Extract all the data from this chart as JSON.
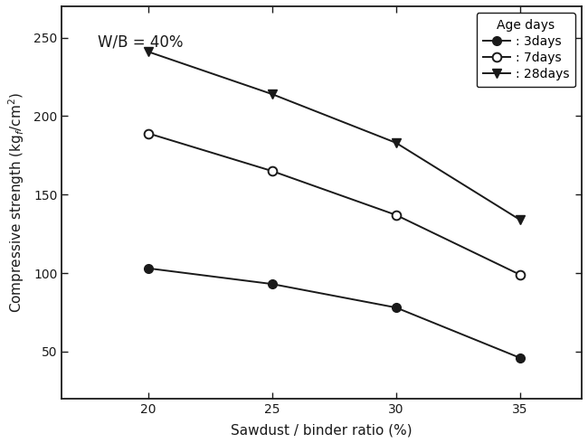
{
  "x": [
    20,
    25,
    30,
    35
  ],
  "series_3days": [
    103,
    93,
    78,
    46
  ],
  "series_7days": [
    189,
    165,
    137,
    99
  ],
  "series_28days": [
    241,
    214,
    183,
    134
  ],
  "xlabel": "Sawdust / binder ratio (%)",
  "ylabel": "Compressive strength (kg$_f$/cm$^2$)",
  "annotation": "W/B = 40%",
  "legend_title": "Age days",
  "legend_labels": [
    ": 3days",
    ": 7days",
    ": 28days"
  ],
  "xlim": [
    16.5,
    37.5
  ],
  "ylim": [
    20,
    270
  ],
  "xticks": [
    20,
    25,
    30,
    35
  ],
  "yticks": [
    50,
    100,
    150,
    200,
    250
  ],
  "color": "#1a1a1a",
  "bg_color": "#ffffff",
  "fontsize_label": 11,
  "fontsize_tick": 10,
  "fontsize_legend": 10,
  "fontsize_annotation": 12,
  "linewidth": 1.4,
  "markersize": 7
}
